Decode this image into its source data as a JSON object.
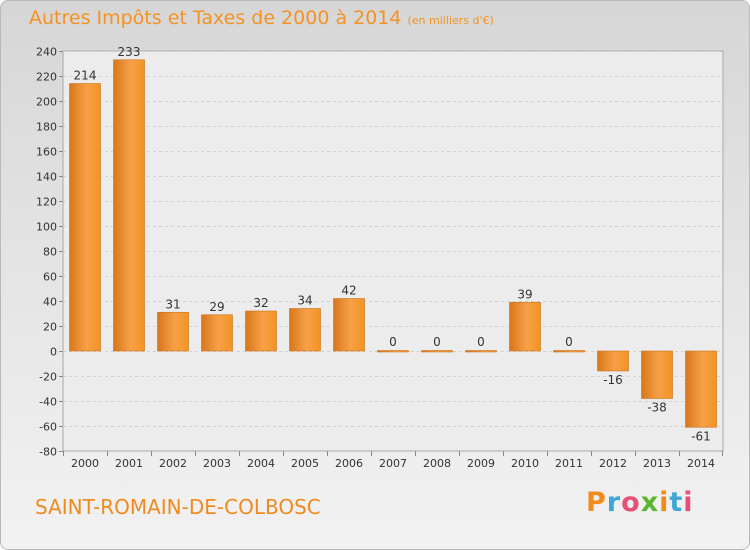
{
  "chart_data": {
    "type": "bar",
    "title": "Autres Impôts et Taxes de 2000 à 2014",
    "subtitle": "(en milliers d'€)",
    "categories": [
      "2000",
      "2001",
      "2002",
      "2003",
      "2004",
      "2005",
      "2006",
      "2007",
      "2008",
      "2009",
      "2010",
      "2011",
      "2012",
      "2013",
      "2014"
    ],
    "values": [
      214,
      233,
      31,
      29,
      32,
      34,
      42,
      0,
      0,
      0,
      39,
      0,
      -16,
      -38,
      -61
    ],
    "ylim": [
      -80,
      240
    ],
    "yticks": [
      240,
      220,
      200,
      180,
      160,
      140,
      120,
      100,
      80,
      60,
      40,
      20,
      0,
      -20,
      -40,
      -60,
      -80
    ],
    "grid": true,
    "bar_color": "#f39322"
  },
  "place_name": "SAINT-ROMAIN-DE-COLBOSC",
  "brand": {
    "letters": [
      "P",
      "r",
      "o",
      "x",
      "i",
      "t",
      "i"
    ],
    "colors": [
      "#f18b1c",
      "#3fa7d6",
      "#e94e77",
      "#5cb531",
      "#f18b1c",
      "#3fa7d6",
      "#e94e77"
    ]
  }
}
